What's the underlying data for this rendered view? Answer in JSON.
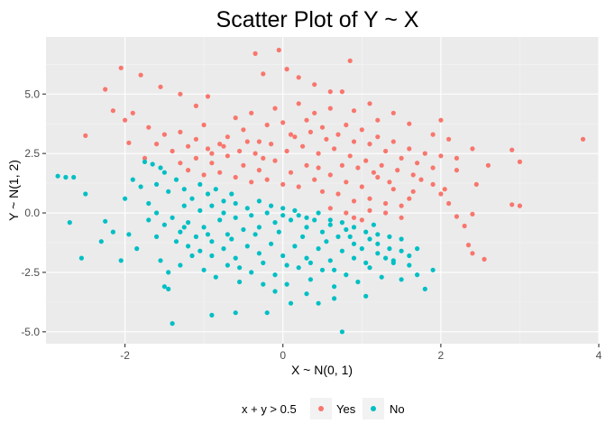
{
  "chart_data": {
    "type": "scatter",
    "title": "Scatter Plot of Y ~ X",
    "xlabel": "X ~ N(0, 1)",
    "ylabel": "Y ~ N(1, 2)",
    "xlim": [
      -3.0,
      4.0
    ],
    "ylim": [
      -5.5,
      7.4
    ],
    "x_ticks": [
      -2,
      0,
      2,
      4
    ],
    "y_ticks": [
      -5.0,
      -2.5,
      0.0,
      2.5,
      5.0
    ],
    "x_tick_labels": [
      "-2",
      "0",
      "2",
      "4"
    ],
    "y_tick_labels": [
      "-5.0",
      "-2.5",
      "0.0",
      "2.5",
      "5.0"
    ],
    "grid": true,
    "background": "#ebebeb",
    "legend": {
      "title": "x + y > 0.5",
      "position": "bottom",
      "entries": [
        {
          "label": "Yes",
          "color": "#f8766d"
        },
        {
          "label": "No",
          "color": "#00bfc4"
        }
      ]
    },
    "series": [
      {
        "name": "Yes",
        "color": "#f8766d",
        "points": [
          [
            -2.05,
            6.1
          ],
          [
            -1.8,
            5.8
          ],
          [
            -2.25,
            5.2
          ],
          [
            -2.15,
            4.3
          ],
          [
            -2.5,
            3.25
          ],
          [
            -1.55,
            5.3
          ],
          [
            -1.3,
            5.0
          ],
          [
            -1.1,
            4.5
          ],
          [
            -0.95,
            4.9
          ],
          [
            -0.35,
            6.7
          ],
          [
            -0.05,
            6.85
          ],
          [
            -0.25,
            5.85
          ],
          [
            0.05,
            6.05
          ],
          [
            0.2,
            5.7
          ],
          [
            0.4,
            5.4
          ],
          [
            0.6,
            5.1
          ],
          [
            0.85,
            6.4
          ],
          [
            0.75,
            5.1
          ],
          [
            0.9,
            4.3
          ],
          [
            1.1,
            4.6
          ],
          [
            1.4,
            4.2
          ],
          [
            1.2,
            3.9
          ],
          [
            1.6,
            3.75
          ],
          [
            2.0,
            3.9
          ],
          [
            1.9,
            3.3
          ],
          [
            2.1,
            3.1
          ],
          [
            2.4,
            2.7
          ],
          [
            2.2,
            2.3
          ],
          [
            2.6,
            2.0
          ],
          [
            2.9,
            2.65
          ],
          [
            3.0,
            2.15
          ],
          [
            3.8,
            3.1
          ],
          [
            2.9,
            0.35
          ],
          [
            3.0,
            0.3
          ],
          [
            2.45,
            1.2
          ],
          [
            2.2,
            1.8
          ],
          [
            2.3,
            -0.55
          ],
          [
            2.35,
            -1.35
          ],
          [
            2.4,
            -1.7
          ],
          [
            2.55,
            -1.95
          ],
          [
            2.4,
            -0.05
          ],
          [
            2.1,
            0.4
          ],
          [
            2.0,
            0.8
          ],
          [
            2.2,
            -0.15
          ],
          [
            -2.0,
            3.9
          ],
          [
            -1.9,
            4.2
          ],
          [
            -1.7,
            3.6
          ],
          [
            -1.5,
            3.3
          ],
          [
            -1.6,
            2.9
          ],
          [
            -1.4,
            2.6
          ],
          [
            -1.75,
            2.3
          ],
          [
            -1.95,
            2.95
          ],
          [
            -1.3,
            3.4
          ],
          [
            -1.2,
            2.8
          ],
          [
            -1.1,
            3.1
          ],
          [
            -1.0,
            3.7
          ],
          [
            -0.9,
            2.5
          ],
          [
            -0.8,
            2.9
          ],
          [
            -0.7,
            3.2
          ],
          [
            -0.6,
            4.0
          ],
          [
            -0.5,
            3.5
          ],
          [
            -0.4,
            4.2
          ],
          [
            -0.3,
            3.0
          ],
          [
            -0.2,
            3.7
          ],
          [
            -0.1,
            4.4
          ],
          [
            0.0,
            3.8
          ],
          [
            0.1,
            3.3
          ],
          [
            0.2,
            4.6
          ],
          [
            0.3,
            3.9
          ],
          [
            0.4,
            4.2
          ],
          [
            0.5,
            3.6
          ],
          [
            0.6,
            4.4
          ],
          [
            0.7,
            3.3
          ],
          [
            0.8,
            3.7
          ],
          [
            0.9,
            3.0
          ],
          [
            1.0,
            3.5
          ],
          [
            1.1,
            2.9
          ],
          [
            1.2,
            3.2
          ],
          [
            1.3,
            2.6
          ],
          [
            1.4,
            3.0
          ],
          [
            1.5,
            2.3
          ],
          [
            1.6,
            2.7
          ],
          [
            1.7,
            2.1
          ],
          [
            1.8,
            2.5
          ],
          [
            1.9,
            1.9
          ],
          [
            2.0,
            2.4
          ],
          [
            1.75,
            1.4
          ],
          [
            1.9,
            1.2
          ],
          [
            2.05,
            1.0
          ],
          [
            1.65,
            0.9
          ],
          [
            -1.3,
            2.1
          ],
          [
            -1.2,
            1.8
          ],
          [
            -1.1,
            2.3
          ],
          [
            -1.0,
            1.6
          ],
          [
            -0.9,
            2.1
          ],
          [
            -0.8,
            1.7
          ],
          [
            -0.7,
            2.4
          ],
          [
            -0.6,
            1.5
          ],
          [
            -0.5,
            2.0
          ],
          [
            -0.4,
            1.3
          ],
          [
            -0.3,
            1.8
          ],
          [
            -0.2,
            1.4
          ],
          [
            -0.1,
            2.2
          ],
          [
            0.0,
            1.2
          ],
          [
            0.1,
            1.7
          ],
          [
            0.2,
            1.1
          ],
          [
            0.3,
            2.0
          ],
          [
            0.4,
            1.4
          ],
          [
            0.5,
            0.9
          ],
          [
            0.6,
            1.6
          ],
          [
            0.7,
            0.8
          ],
          [
            0.8,
            1.3
          ],
          [
            0.9,
            0.5
          ],
          [
            1.0,
            1.1
          ],
          [
            1.1,
            0.6
          ],
          [
            1.2,
            1.5
          ],
          [
            1.3,
            0.4
          ],
          [
            1.4,
            1.0
          ],
          [
            1.5,
            0.3
          ],
          [
            1.6,
            0.6
          ],
          [
            1.1,
            0.1
          ],
          [
            1.3,
            0.0
          ],
          [
            1.5,
            -0.2
          ],
          [
            1.0,
            -0.3
          ],
          [
            0.8,
            0.0
          ],
          [
            0.6,
            0.2
          ],
          [
            0.9,
            -0.2
          ],
          [
            -0.95,
            2.7
          ],
          [
            -0.75,
            2.8
          ],
          [
            -0.55,
            2.6
          ],
          [
            -0.35,
            2.5
          ],
          [
            -0.15,
            2.9
          ],
          [
            0.05,
            2.6
          ],
          [
            0.25,
            2.8
          ],
          [
            0.45,
            2.5
          ],
          [
            0.65,
            2.7
          ],
          [
            0.85,
            2.4
          ],
          [
            1.05,
            2.2
          ],
          [
            1.25,
            2.0
          ],
          [
            1.45,
            1.8
          ],
          [
            1.65,
            1.6
          ],
          [
            -0.45,
            3.0
          ],
          [
            0.15,
            3.2
          ],
          [
            0.35,
            3.4
          ],
          [
            0.55,
            3.1
          ],
          [
            -0.25,
            2.3
          ],
          [
            0.45,
            1.9
          ],
          [
            0.75,
            2.0
          ],
          [
            1.15,
            1.7
          ],
          [
            1.35,
            1.3
          ],
          [
            0.95,
            1.9
          ]
        ]
      },
      {
        "name": "No",
        "color": "#00bfc4",
        "points": [
          [
            -2.85,
            1.55
          ],
          [
            -2.75,
            1.5
          ],
          [
            -2.65,
            1.5
          ],
          [
            -2.5,
            0.8
          ],
          [
            -2.7,
            -0.4
          ],
          [
            -2.25,
            -0.35
          ],
          [
            -2.55,
            -1.9
          ],
          [
            -2.3,
            -1.2
          ],
          [
            -2.15,
            -0.8
          ],
          [
            -2.05,
            -2.0
          ],
          [
            -1.85,
            -1.5
          ],
          [
            -2.0,
            0.6
          ],
          [
            -1.9,
            1.4
          ],
          [
            -1.8,
            1.1
          ],
          [
            -1.95,
            -0.9
          ],
          [
            -1.7,
            0.4
          ],
          [
            -1.75,
            2.15
          ],
          [
            -1.65,
            2.05
          ],
          [
            -1.55,
            1.9
          ],
          [
            -1.5,
            1.7
          ],
          [
            -1.6,
            1.2
          ],
          [
            -1.45,
            0.9
          ],
          [
            -1.35,
            1.4
          ],
          [
            -1.25,
            1.0
          ],
          [
            -1.15,
            0.6
          ],
          [
            -1.05,
            1.2
          ],
          [
            -0.95,
            0.8
          ],
          [
            -0.85,
            1.0
          ],
          [
            -0.75,
            0.5
          ],
          [
            -0.65,
            0.8
          ],
          [
            -1.6,
            0.0
          ],
          [
            -1.5,
            -0.5
          ],
          [
            -1.4,
            -0.2
          ],
          [
            -1.3,
            -0.8
          ],
          [
            -1.2,
            -0.4
          ],
          [
            -1.1,
            -1.0
          ],
          [
            -1.0,
            -0.6
          ],
          [
            -0.9,
            -1.2
          ],
          [
            -0.8,
            -0.3
          ],
          [
            -0.7,
            -0.9
          ],
          [
            -0.6,
            -0.2
          ],
          [
            -0.5,
            -0.7
          ],
          [
            -0.4,
            -0.1
          ],
          [
            -0.3,
            -0.6
          ],
          [
            -0.2,
            0.0
          ],
          [
            -0.1,
            -0.4
          ],
          [
            0.0,
            0.2
          ],
          [
            0.1,
            -0.3
          ],
          [
            0.2,
            -0.1
          ],
          [
            0.3,
            -0.6
          ],
          [
            0.4,
            -0.3
          ],
          [
            0.5,
            -0.8
          ],
          [
            0.6,
            -0.5
          ],
          [
            0.7,
            -1.0
          ],
          [
            0.8,
            -0.7
          ],
          [
            0.9,
            -1.3
          ],
          [
            1.0,
            -1.5
          ],
          [
            1.1,
            -1.1
          ],
          [
            1.2,
            -1.7
          ],
          [
            1.3,
            -1.9
          ],
          [
            1.4,
            -2.1
          ],
          [
            1.5,
            -1.6
          ],
          [
            1.6,
            -2.2
          ],
          [
            1.7,
            -1.5
          ],
          [
            -1.7,
            -0.3
          ],
          [
            -1.6,
            -1.0
          ],
          [
            -1.55,
            -2.0
          ],
          [
            -1.45,
            -2.5
          ],
          [
            -1.3,
            -2.2
          ],
          [
            -1.15,
            -1.8
          ],
          [
            -1.0,
            -2.4
          ],
          [
            -0.85,
            -2.7
          ],
          [
            -0.7,
            -2.2
          ],
          [
            -0.55,
            -2.9
          ],
          [
            -0.4,
            -2.5
          ],
          [
            -0.25,
            -3.0
          ],
          [
            -0.1,
            -2.6
          ],
          [
            0.05,
            -3.0
          ],
          [
            0.2,
            -2.3
          ],
          [
            0.35,
            -2.8
          ],
          [
            0.5,
            -2.4
          ],
          [
            0.65,
            -3.1
          ],
          [
            0.8,
            -2.6
          ],
          [
            0.95,
            -2.9
          ],
          [
            1.1,
            -2.3
          ],
          [
            1.25,
            -2.7
          ],
          [
            1.4,
            -2.0
          ],
          [
            1.7,
            -2.6
          ],
          [
            -1.45,
            -3.2
          ],
          [
            -1.5,
            -3.1
          ],
          [
            -1.4,
            -4.65
          ],
          [
            -0.9,
            -4.3
          ],
          [
            -0.6,
            -4.2
          ],
          [
            -0.2,
            -4.2
          ],
          [
            0.1,
            -3.8
          ],
          [
            0.45,
            -3.8
          ],
          [
            0.65,
            -3.6
          ],
          [
            0.75,
            -5.0
          ],
          [
            1.05,
            -3.5
          ],
          [
            1.8,
            -3.2
          ],
          [
            -0.1,
            -3.3
          ],
          [
            0.3,
            -3.4
          ],
          [
            -1.25,
            0.3
          ],
          [
            -1.05,
            0.1
          ],
          [
            -0.9,
            0.3
          ],
          [
            -0.75,
            0.0
          ],
          [
            -0.6,
            0.4
          ],
          [
            -0.45,
            0.2
          ],
          [
            -0.3,
            0.5
          ],
          [
            -0.15,
            0.3
          ],
          [
            0.0,
            -0.1
          ],
          [
            0.15,
            0.1
          ],
          [
            0.3,
            -0.2
          ],
          [
            0.45,
            0.0
          ],
          [
            0.6,
            -0.3
          ],
          [
            0.75,
            -0.4
          ],
          [
            0.9,
            -0.6
          ],
          [
            1.05,
            -0.8
          ],
          [
            1.2,
            -0.9
          ],
          [
            1.35,
            -1.0
          ],
          [
            1.5,
            -1.1
          ],
          [
            -1.2,
            -1.4
          ],
          [
            -1.05,
            -1.6
          ],
          [
            -0.9,
            -1.8
          ],
          [
            -0.75,
            -1.5
          ],
          [
            -0.6,
            -1.9
          ],
          [
            -0.45,
            -1.4
          ],
          [
            -0.3,
            -1.7
          ],
          [
            -0.15,
            -1.3
          ],
          [
            0.0,
            -1.8
          ],
          [
            0.15,
            -1.4
          ],
          [
            0.3,
            -1.9
          ],
          [
            0.45,
            -1.5
          ],
          [
            0.6,
            -2.0
          ],
          [
            0.75,
            -1.6
          ],
          [
            0.9,
            -1.9
          ],
          [
            1.05,
            -2.1
          ],
          [
            1.2,
            -1.3
          ],
          [
            1.35,
            -1.5
          ],
          [
            -1.35,
            -1.2
          ],
          [
            -1.25,
            -0.6
          ],
          [
            -0.95,
            -0.9
          ],
          [
            -0.65,
            -1.1
          ],
          [
            -0.35,
            -0.9
          ],
          [
            -0.05,
            -0.8
          ],
          [
            0.25,
            -1.0
          ],
          [
            0.55,
            -1.2
          ],
          [
            0.85,
            -1.0
          ],
          [
            1.15,
            -0.5
          ],
          [
            -0.55,
            -2.3
          ],
          [
            -0.25,
            -2.1
          ],
          [
            0.05,
            -2.2
          ],
          [
            0.35,
            -2.1
          ],
          [
            0.65,
            -2.4
          ],
          [
            1.5,
            -2.8
          ],
          [
            1.9,
            -2.4
          ],
          [
            1.6,
            -1.8
          ]
        ]
      }
    ]
  }
}
